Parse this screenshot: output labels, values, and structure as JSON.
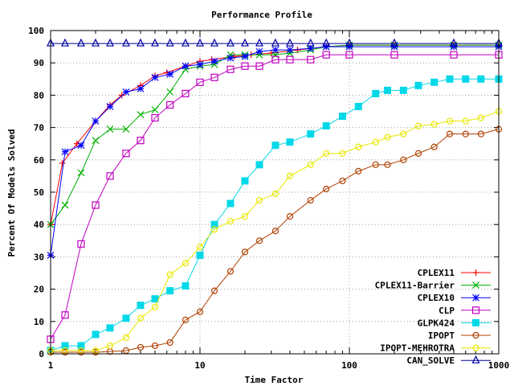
{
  "chart_data": {
    "type": "line",
    "title": "Performance Profile",
    "xlabel": "Time Factor",
    "ylabel": "Percent Of Models Solved",
    "xscale": "log",
    "xlim": [
      1,
      1000
    ],
    "ylim": [
      0,
      100
    ],
    "grid": true,
    "legend_position": "bottom-right",
    "x_ticks": [
      {
        "value": 1,
        "label": "1"
      },
      {
        "value": 10,
        "label": "10"
      },
      {
        "value": 100,
        "label": "100"
      },
      {
        "value": 1000,
        "label": "1000"
      }
    ],
    "y_ticks": [
      {
        "value": 0,
        "label": "0"
      },
      {
        "value": 10,
        "label": "10"
      },
      {
        "value": 20,
        "label": "20"
      },
      {
        "value": 30,
        "label": "30"
      },
      {
        "value": 40,
        "label": "40"
      },
      {
        "value": 50,
        "label": "50"
      },
      {
        "value": 60,
        "label": "60"
      },
      {
        "value": 70,
        "label": "70"
      },
      {
        "value": 80,
        "label": "80"
      },
      {
        "value": 90,
        "label": "90"
      },
      {
        "value": 100,
        "label": "100"
      }
    ],
    "series": [
      {
        "name": "CPLEX11",
        "color": "#ff0000",
        "marker": "plus",
        "x": [
          1,
          1.2,
          1.5,
          2,
          2.5,
          3,
          4,
          5,
          6,
          8,
          10,
          12,
          17,
          22,
          30,
          45,
          70,
          100,
          200,
          500,
          1000
        ],
        "y": [
          40,
          59,
          65,
          72,
          77,
          80,
          83,
          86,
          87,
          89,
          90.5,
          91,
          92,
          92.5,
          93,
          94,
          95,
          95.5,
          95.5,
          95.5,
          95.5
        ]
      },
      {
        "name": "CPLEX11-Barrier",
        "color": "#00b000",
        "marker": "x",
        "x": [
          1,
          1.25,
          1.6,
          2,
          2.5,
          3.2,
          4,
          5,
          6.3,
          8,
          10,
          12.5,
          16,
          20,
          25,
          32,
          40,
          55,
          70,
          100,
          200,
          500,
          1000
        ],
        "y": [
          40,
          46,
          56,
          66,
          69.5,
          69.5,
          74,
          75.5,
          81,
          88,
          89,
          89.5,
          92.5,
          92.5,
          92.5,
          92.5,
          93,
          94,
          95,
          95.5,
          95.5,
          95.5,
          95.5
        ]
      },
      {
        "name": "CPLEX10",
        "color": "#0000ff",
        "marker": "star",
        "x": [
          1,
          1.25,
          1.6,
          2,
          2.5,
          3.2,
          4,
          5,
          6.3,
          8,
          10,
          12.5,
          16,
          20,
          25,
          32,
          40,
          55,
          70,
          100,
          200,
          500,
          1000
        ],
        "y": [
          30.5,
          62.5,
          64.5,
          72,
          76.5,
          81,
          82,
          85.5,
          86.5,
          89,
          89.5,
          90.5,
          91.5,
          92,
          93.5,
          94,
          94,
          94.5,
          95,
          95,
          95,
          95,
          95
        ]
      },
      {
        "name": "CLP",
        "color": "#c000c0",
        "marker": "square",
        "x": [
          1,
          1.25,
          1.6,
          2,
          2.5,
          3.2,
          4,
          5,
          6.3,
          8,
          10,
          12.5,
          16,
          20,
          25,
          32,
          40,
          55,
          70,
          100,
          200,
          500,
          1000
        ],
        "y": [
          4.5,
          12,
          34,
          46,
          55,
          62,
          66,
          73,
          77,
          80.5,
          84,
          85.5,
          88,
          89,
          89,
          91,
          91,
          91,
          92.5,
          92.5,
          92.5,
          92.5,
          92.5
        ]
      },
      {
        "name": "GLPK424",
        "color": "#00d8e8",
        "marker": "filled-square",
        "x": [
          1,
          1.25,
          1.6,
          2,
          2.5,
          3.2,
          4,
          5,
          6.3,
          8,
          10,
          12.5,
          16,
          20,
          25,
          32,
          40,
          55,
          70,
          90,
          115,
          150,
          180,
          230,
          290,
          370,
          470,
          600,
          760,
          1000
        ],
        "y": [
          1,
          2.5,
          2.5,
          6,
          8,
          11,
          15,
          17,
          19.5,
          21,
          30.5,
          40,
          46.5,
          53.5,
          58.5,
          64.5,
          65.5,
          68,
          70.5,
          73.5,
          76.5,
          80.5,
          81.5,
          81.5,
          83,
          84,
          85,
          85,
          85,
          85
        ]
      },
      {
        "name": "IPOPT",
        "color": "#b04000",
        "marker": "circle",
        "x": [
          1,
          1.25,
          1.6,
          2,
          2.5,
          3.2,
          4,
          5,
          6.3,
          8,
          10,
          12.5,
          16,
          20,
          25,
          32,
          40,
          55,
          70,
          90,
          115,
          150,
          180,
          230,
          290,
          370,
          470,
          600,
          760,
          1000
        ],
        "y": [
          0.5,
          0.5,
          0.5,
          0.5,
          0.7,
          1,
          2,
          2.5,
          3.5,
          10.5,
          13,
          19.5,
          25.5,
          31.5,
          35,
          38,
          42.5,
          47.5,
          51,
          53.5,
          56.5,
          58.5,
          58.5,
          60,
          62,
          64,
          68,
          68,
          68,
          69.5
        ]
      },
      {
        "name": "IPOPT-MEHROTRA",
        "color": "#e8e800",
        "marker": "circle",
        "x": [
          1,
          1.25,
          1.6,
          2,
          2.5,
          3.2,
          4,
          5,
          6.3,
          8,
          10,
          12.5,
          16,
          20,
          25,
          32,
          40,
          55,
          70,
          90,
          115,
          150,
          180,
          230,
          290,
          370,
          470,
          600,
          760,
          1000
        ],
        "y": [
          1,
          1,
          1,
          1,
          2.5,
          5,
          11,
          14.5,
          24.5,
          28,
          33,
          38.5,
          41,
          42.5,
          47.5,
          49.5,
          55,
          58.5,
          62,
          62,
          64,
          65.5,
          67,
          68,
          70.5,
          71,
          72,
          72,
          73,
          75
        ]
      },
      {
        "name": "CAN_SOLVE",
        "color": "#0000a0",
        "marker": "triangle",
        "x": [
          1,
          1.25,
          1.6,
          2,
          2.5,
          3.2,
          4,
          5,
          6.3,
          8,
          10,
          12.5,
          16,
          20,
          25,
          32,
          40,
          55,
          70,
          100,
          200,
          500,
          1000
        ],
        "y": [
          96,
          96,
          96,
          96,
          96,
          96,
          96,
          96,
          96,
          96,
          96,
          96,
          96,
          96,
          96,
          96,
          96,
          96,
          96,
          96,
          96,
          96,
          96
        ]
      }
    ]
  }
}
